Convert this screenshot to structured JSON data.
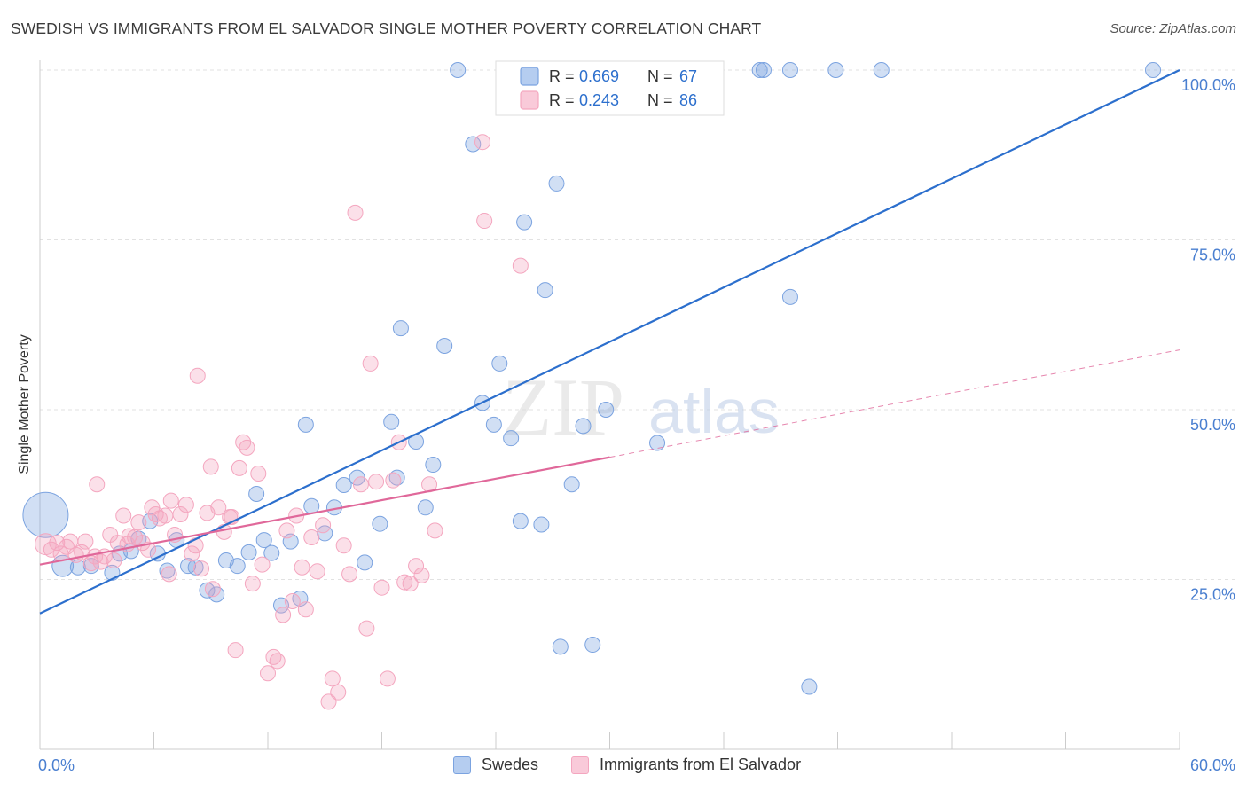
{
  "title": "SWEDISH VS IMMIGRANTS FROM EL SALVADOR SINGLE MOTHER POVERTY CORRELATION CHART",
  "source": "Source: ZipAtlas.com",
  "watermark": {
    "zip": "ZIP",
    "atlas": "atlas"
  },
  "chart_data": {
    "type": "scatter",
    "ylabel": "Single Mother Poverty",
    "xlim": [
      0,
      60
    ],
    "ylim": [
      0,
      102
    ],
    "x_tick_labels": [
      {
        "value": 0,
        "label": "0.0%"
      },
      {
        "value": 60,
        "label": "60.0%"
      }
    ],
    "y_tick_labels": [
      {
        "value": 25,
        "label": "25.0%"
      },
      {
        "value": 50,
        "label": "50.0%"
      },
      {
        "value": 75,
        "label": "75.0%"
      },
      {
        "value": 100,
        "label": "100.0%"
      }
    ],
    "grid": true,
    "legend_placement": "top-center",
    "series": [
      {
        "name": "Swedes",
        "color": "#7ba3e0",
        "line_color": "#2c6fcd",
        "R": "0.669",
        "N": "67",
        "trend": {
          "x0": 0,
          "y0": 20.0,
          "x1": 60,
          "y1": 100.0
        },
        "points": [
          [
            0.3,
            34.5,
            3
          ],
          [
            1.2,
            27,
            1.4
          ],
          [
            2.0,
            26.8,
            1
          ],
          [
            2.7,
            27,
            1
          ],
          [
            3.8,
            26,
            1
          ],
          [
            4.2,
            28.8,
            1
          ],
          [
            4.8,
            29.2,
            1
          ],
          [
            5.2,
            31,
            1
          ],
          [
            5.8,
            33.6,
            1
          ],
          [
            6.2,
            28.8,
            1
          ],
          [
            6.7,
            26.3,
            1
          ],
          [
            7.2,
            30.8,
            1
          ],
          [
            7.8,
            27,
            1
          ],
          [
            8.2,
            26.8,
            1
          ],
          [
            8.8,
            23.4,
            1
          ],
          [
            9.3,
            22.8,
            1
          ],
          [
            9.8,
            27.8,
            1
          ],
          [
            10.4,
            27,
            1
          ],
          [
            11.0,
            29,
            1
          ],
          [
            11.4,
            37.6,
            1
          ],
          [
            11.8,
            30.8,
            1
          ],
          [
            12.2,
            28.9,
            1
          ],
          [
            12.7,
            21.2,
            1
          ],
          [
            13.2,
            30.6,
            1
          ],
          [
            13.7,
            22.2,
            1
          ],
          [
            14.0,
            47.8,
            1
          ],
          [
            14.3,
            35.8,
            1
          ],
          [
            15.0,
            31.8,
            1
          ],
          [
            15.5,
            35.6,
            1
          ],
          [
            16.0,
            38.9,
            1
          ],
          [
            16.7,
            40,
            1
          ],
          [
            17.1,
            27.5,
            1
          ],
          [
            17.9,
            33.2,
            1
          ],
          [
            18.5,
            48.2,
            1
          ],
          [
            18.8,
            40,
            1
          ],
          [
            19.0,
            62,
            1
          ],
          [
            19.8,
            45.3,
            1
          ],
          [
            20.3,
            35.6,
            1
          ],
          [
            20.7,
            41.9,
            1
          ],
          [
            21.3,
            59.4,
            1
          ],
          [
            22.0,
            100,
            1
          ],
          [
            22.8,
            89.1,
            1
          ],
          [
            23.3,
            51,
            1
          ],
          [
            23.9,
            47.8,
            1
          ],
          [
            24.2,
            56.8,
            1
          ],
          [
            24.8,
            45.8,
            1
          ],
          [
            25.3,
            33.6,
            1
          ],
          [
            25.5,
            77.6,
            1
          ],
          [
            26.4,
            33.1,
            1
          ],
          [
            26.6,
            67.6,
            1
          ],
          [
            27.2,
            83.3,
            1
          ],
          [
            27.4,
            15.1,
            1
          ],
          [
            28.0,
            39,
            1
          ],
          [
            28.6,
            47.6,
            1
          ],
          [
            29.1,
            15.4,
            1
          ],
          [
            29.8,
            50,
            1
          ],
          [
            31.4,
            100,
            1
          ],
          [
            32.5,
            45.1,
            1
          ],
          [
            37.9,
            100,
            1
          ],
          [
            38.1,
            100,
            1
          ],
          [
            39.5,
            66.6,
            1
          ],
          [
            39.5,
            100,
            1
          ],
          [
            40.5,
            9.2,
            1
          ],
          [
            41.9,
            100,
            1
          ],
          [
            44.3,
            100,
            1
          ],
          [
            58.6,
            100,
            1
          ]
        ]
      },
      {
        "name": "Immigrants from El Salvador",
        "color": "#f4a6bf",
        "line_color": "#e0689a",
        "R": "0.243",
        "N": "86",
        "trend": {
          "x0": 0,
          "y0": 27.2,
          "x1": 30,
          "y1": 43.0,
          "dash_x1": 60,
          "dash_y1": 58.8
        },
        "points": [
          [
            0.3,
            30.2,
            1.4
          ],
          [
            0.6,
            29.4,
            1
          ],
          [
            0.9,
            30.4,
            1
          ],
          [
            1.1,
            28.8,
            1
          ],
          [
            1.4,
            29.8,
            1
          ],
          [
            1.6,
            30.6,
            1
          ],
          [
            1.9,
            28.6,
            1
          ],
          [
            2.2,
            29,
            1
          ],
          [
            2.4,
            30.6,
            1
          ],
          [
            2.7,
            27.4,
            1
          ],
          [
            2.9,
            28.4,
            1
          ],
          [
            3.2,
            27.6,
            1
          ],
          [
            3.4,
            28.4,
            1
          ],
          [
            3.7,
            31.6,
            1
          ],
          [
            3.9,
            27.8,
            1
          ],
          [
            4.1,
            30.4,
            1
          ],
          [
            4.4,
            34.4,
            1
          ],
          [
            4.7,
            31.4,
            1
          ],
          [
            5.0,
            31.2,
            1
          ],
          [
            5.2,
            33.4,
            1
          ],
          [
            5.4,
            30.4,
            1
          ],
          [
            5.7,
            29.4,
            1
          ],
          [
            5.9,
            35.6,
            1
          ],
          [
            6.1,
            34.6,
            1
          ],
          [
            6.3,
            34.0,
            1
          ],
          [
            6.6,
            34.4,
            1
          ],
          [
            6.9,
            36.6,
            1
          ],
          [
            7.1,
            31.6,
            1
          ],
          [
            7.4,
            34.6,
            1
          ],
          [
            7.7,
            36,
            1
          ],
          [
            8.0,
            28.8,
            1
          ],
          [
            8.2,
            30,
            1
          ],
          [
            8.5,
            26.6,
            1
          ],
          [
            8.8,
            34.8,
            1
          ],
          [
            9.1,
            23.6,
            1
          ],
          [
            9.4,
            35.6,
            1
          ],
          [
            9.7,
            32,
            1
          ],
          [
            10.0,
            34.2,
            1
          ],
          [
            10.3,
            14.6,
            1
          ],
          [
            10.5,
            41.4,
            1
          ],
          [
            10.7,
            45.2,
            1
          ],
          [
            10.9,
            44.4,
            1
          ],
          [
            11.2,
            24.4,
            1
          ],
          [
            11.5,
            40.6,
            1
          ],
          [
            11.7,
            27.2,
            1
          ],
          [
            12.0,
            11.2,
            1
          ],
          [
            12.3,
            13.6,
            1
          ],
          [
            12.5,
            13.0,
            1
          ],
          [
            12.8,
            19.8,
            1
          ],
          [
            13.0,
            32.2,
            1
          ],
          [
            13.3,
            21.8,
            1
          ],
          [
            13.5,
            34.4,
            1
          ],
          [
            13.8,
            26.8,
            1
          ],
          [
            14.0,
            20.6,
            1
          ],
          [
            14.3,
            31.2,
            1
          ],
          [
            14.6,
            26.2,
            1
          ],
          [
            14.9,
            33.0,
            1
          ],
          [
            15.2,
            7.0,
            1
          ],
          [
            15.4,
            10.4,
            1
          ],
          [
            15.7,
            8.4,
            1
          ],
          [
            16.0,
            30.0,
            1
          ],
          [
            16.3,
            25.8,
            1
          ],
          [
            16.6,
            79.0,
            1
          ],
          [
            16.9,
            39.0,
            1
          ],
          [
            17.2,
            17.8,
            1
          ],
          [
            17.4,
            56.8,
            1
          ],
          [
            17.7,
            39.4,
            1
          ],
          [
            18.0,
            23.8,
            1
          ],
          [
            18.3,
            10.4,
            1
          ],
          [
            18.6,
            39.6,
            1
          ],
          [
            18.9,
            45.2,
            1
          ],
          [
            19.2,
            24.6,
            1
          ],
          [
            19.5,
            24.4,
            1
          ],
          [
            19.8,
            27.0,
            1
          ],
          [
            20.1,
            25.6,
            1
          ],
          [
            20.5,
            39.0,
            1
          ],
          [
            20.8,
            32.2,
            1
          ],
          [
            3.0,
            39.0,
            1
          ],
          [
            4.6,
            30.2,
            1
          ],
          [
            6.8,
            25.8,
            1
          ],
          [
            8.3,
            55.0,
            1
          ],
          [
            9.0,
            41.6,
            1
          ],
          [
            10.1,
            34.2,
            1
          ],
          [
            23.3,
            89.4,
            1
          ],
          [
            23.4,
            77.8,
            1
          ],
          [
            25.3,
            71.2,
            1
          ]
        ]
      }
    ]
  }
}
